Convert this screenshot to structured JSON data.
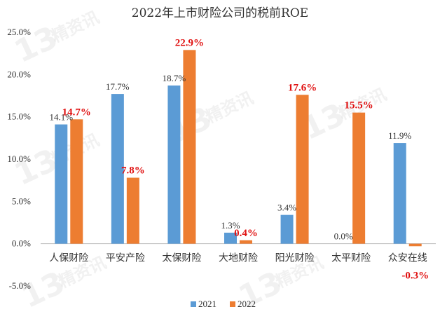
{
  "chart_data": {
    "type": "bar",
    "title": "2022年上市财险公司的税前ROE",
    "categories": [
      "人保财险",
      "平安产险",
      "太保财险",
      "大地财险",
      "阳光财险",
      "太平财险",
      "众安在线"
    ],
    "series": [
      {
        "name": "2021",
        "values": [
          14.1,
          17.7,
          18.7,
          1.3,
          3.4,
          0.0,
          11.9
        ],
        "labels": [
          "14.1%",
          "17.7%",
          "18.7%",
          "1.3%",
          "3.4%",
          "0.0%",
          "11.9%"
        ]
      },
      {
        "name": "2022",
        "values": [
          14.7,
          7.8,
          22.9,
          0.4,
          17.6,
          15.5,
          -0.3
        ],
        "labels": [
          "14.7%",
          "7.8%",
          "22.9%",
          "0.4%",
          "17.6%",
          "15.5%",
          "-0.3%"
        ]
      }
    ],
    "ylim": [
      -5,
      25
    ],
    "yticks": [
      -5,
      0,
      5,
      10,
      15,
      20,
      25
    ],
    "ytick_labels": [
      "-5.0%",
      "0.0%",
      "5.0%",
      "10.0%",
      "15.0%",
      "20.0%",
      "25.0%"
    ],
    "grid": false,
    "legend_position": "bottom",
    "colors": {
      "2021": "#5b9bd5",
      "2022": "#ed7d31",
      "label_2022": "#e01010"
    }
  },
  "watermark": {
    "number": "13",
    "text": "精资讯"
  }
}
